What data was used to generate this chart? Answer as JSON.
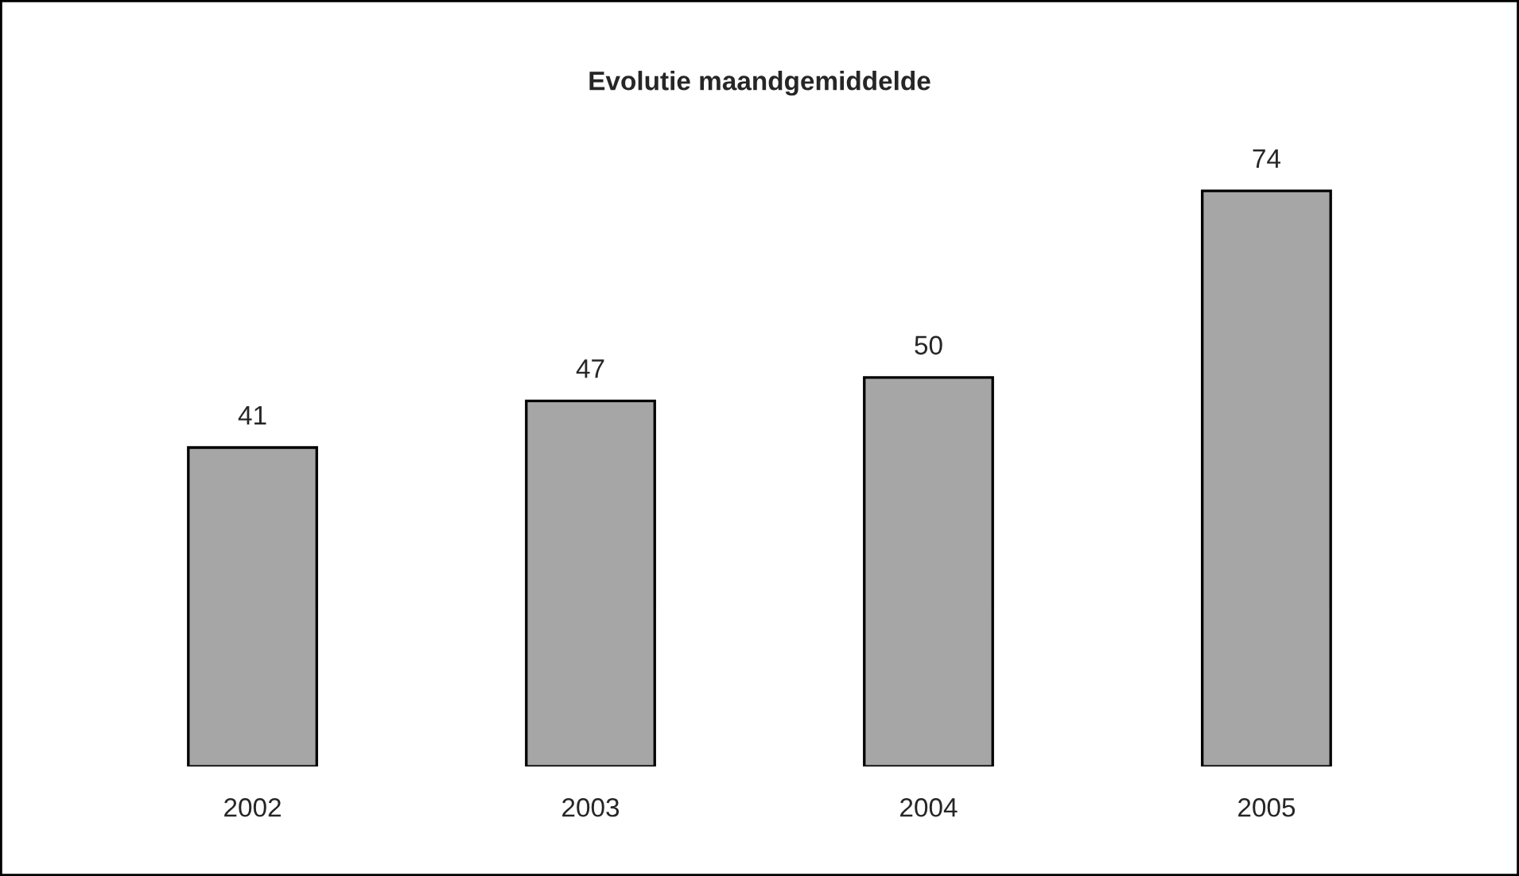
{
  "chart_data": {
    "type": "bar",
    "title": "Evolutie maandgemiddelde",
    "categories": [
      "2002",
      "2003",
      "2004",
      "2005"
    ],
    "values": [
      41,
      47,
      50,
      74
    ],
    "color": "#a6a6a6",
    "data_labels": true,
    "grid": false,
    "legend": false
  }
}
